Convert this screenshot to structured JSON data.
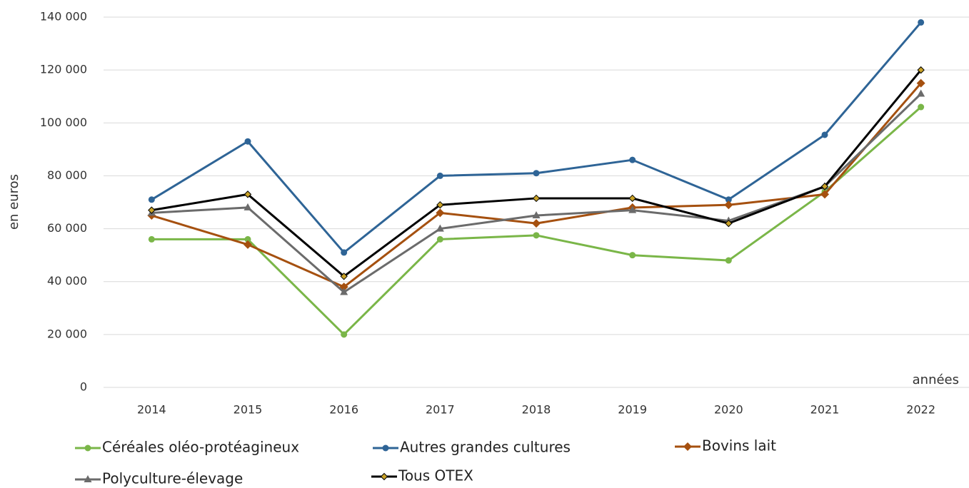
{
  "chart_data": {
    "type": "line",
    "y_label": "en euros",
    "x_label": "années",
    "categories": [
      "2014",
      "2015",
      "2016",
      "2017",
      "2018",
      "2019",
      "2020",
      "2021",
      "2022"
    ],
    "series": [
      {
        "name": "Céréales oléo-protéagineux",
        "color": "#7ab648",
        "marker": "circle",
        "values": [
          56000,
          56000,
          20000,
          56000,
          57500,
          50000,
          48000,
          74000,
          106000
        ]
      },
      {
        "name": "Autres grandes cultures",
        "color": "#2e6496",
        "marker": "circle",
        "values": [
          71000,
          93000,
          51000,
          80000,
          81000,
          86000,
          71000,
          95500,
          138000
        ]
      },
      {
        "name": "Bovins lait",
        "color": "#a5500f",
        "marker": "diamond",
        "values": [
          65000,
          54000,
          38000,
          66000,
          62000,
          68000,
          69000,
          73000,
          115000
        ]
      },
      {
        "name": "Polyculture-élevage",
        "color": "#6b6b6b",
        "marker": "triangle",
        "values": [
          66000,
          68000,
          36000,
          60000,
          65000,
          67000,
          63000,
          76000,
          111000
        ]
      },
      {
        "name": "Tous OTEX",
        "color": "#000000",
        "marker": "diamond",
        "marker_color": "#c9a227",
        "values": [
          67000,
          73000,
          42000,
          69000,
          71500,
          71500,
          62000,
          76000,
          120000
        ]
      }
    ],
    "ylim": [
      0,
      140000
    ],
    "yticks": [
      0,
      {
        "value": 20000,
        "label": "20 000"
      },
      {
        "value": 40000,
        "label": "40 000"
      },
      {
        "value": 60000,
        "label": "60 000"
      },
      {
        "value": 80000,
        "label": "80 000"
      },
      {
        "value": 100000,
        "label": "100 000"
      },
      {
        "value": 120000,
        "label": "120 000"
      },
      {
        "value": 140000,
        "label": "140 000"
      }
    ],
    "grid": true
  }
}
